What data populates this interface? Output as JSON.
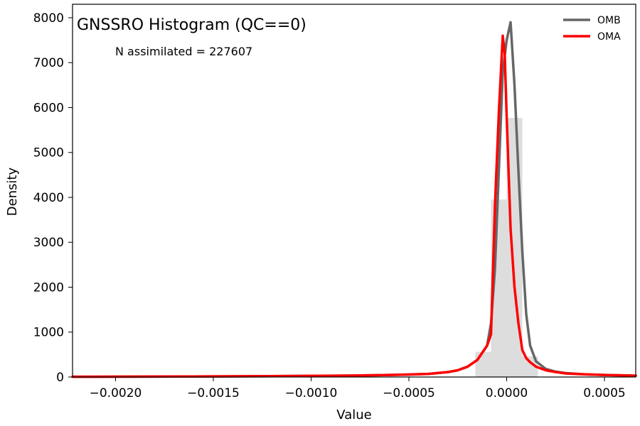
{
  "chart_data": {
    "type": "line",
    "title": "GNSSRO Histogram (QC==0)",
    "annotation": "N assimilated = 227607",
    "xlabel": "Value",
    "ylabel": "Density",
    "xlim": [
      -0.00222,
      0.00066
    ],
    "ylim": [
      0,
      8300
    ],
    "xticks": [
      {
        "v": -0.002,
        "label": "−0.0020"
      },
      {
        "v": -0.0015,
        "label": "−0.0015"
      },
      {
        "v": -0.001,
        "label": "−0.0010"
      },
      {
        "v": -0.0005,
        "label": "−0.0005"
      },
      {
        "v": 0.0,
        "label": "0.0000"
      },
      {
        "v": 0.0005,
        "label": "0.0005"
      }
    ],
    "yticks": [
      {
        "v": 0,
        "label": "0"
      },
      {
        "v": 1000,
        "label": "1000"
      },
      {
        "v": 2000,
        "label": "2000"
      },
      {
        "v": 3000,
        "label": "3000"
      },
      {
        "v": 4000,
        "label": "4000"
      },
      {
        "v": 5000,
        "label": "5000"
      },
      {
        "v": 6000,
        "label": "6000"
      },
      {
        "v": 7000,
        "label": "7000"
      },
      {
        "v": 8000,
        "label": "8000"
      }
    ],
    "legend_position": "top-right",
    "histogram": {
      "color": "#dddddd",
      "bins": [
        {
          "x0": -0.00016,
          "x1": -8e-05,
          "y": 560
        },
        {
          "x0": -8e-05,
          "x1": 0.0,
          "y": 3950
        },
        {
          "x0": 0.0,
          "x1": 8e-05,
          "y": 5770
        },
        {
          "x0": 8e-05,
          "x1": 0.00016,
          "y": 460
        }
      ]
    },
    "series": [
      {
        "name": "OMB",
        "color": "#666666",
        "x": [
          -0.00222,
          -0.002,
          -0.0018,
          -0.0016,
          -0.0014,
          -0.0012,
          -0.001,
          -0.0008,
          -0.0006,
          -0.0005,
          -0.0004,
          -0.0003,
          -0.00025,
          -0.0002,
          -0.00015,
          -0.0001,
          -8e-05,
          -6e-05,
          -4e-05,
          -2e-05,
          0.0,
          2e-05,
          4e-05,
          6e-05,
          8e-05,
          0.0001,
          0.00012,
          0.00015,
          0.0002,
          0.00025,
          0.0003,
          0.0004,
          0.0005,
          0.00066
        ],
        "y": [
          5,
          8,
          10,
          12,
          15,
          20,
          25,
          32,
          45,
          55,
          70,
          110,
          150,
          230,
          380,
          700,
          1200,
          2400,
          4600,
          6800,
          7500,
          7900,
          6500,
          4600,
          2800,
          1400,
          700,
          350,
          180,
          120,
          90,
          60,
          45,
          30
        ]
      },
      {
        "name": "OMA",
        "color": "#ff0000",
        "x": [
          -0.00222,
          -0.002,
          -0.0018,
          -0.0016,
          -0.0014,
          -0.0012,
          -0.001,
          -0.0008,
          -0.0006,
          -0.0005,
          -0.0004,
          -0.0003,
          -0.00025,
          -0.0002,
          -0.00015,
          -0.0001,
          -8e-05,
          -6e-05,
          -4e-05,
          -2e-05,
          -1e-05,
          0.0,
          2e-05,
          4e-05,
          6e-05,
          8e-05,
          0.0001,
          0.00012,
          0.00015,
          0.0002,
          0.00025,
          0.0003,
          0.0004,
          0.0005,
          0.00066
        ],
        "y": [
          5,
          8,
          10,
          12,
          15,
          20,
          25,
          32,
          45,
          55,
          70,
          110,
          150,
          230,
          380,
          700,
          950,
          3800,
          5900,
          7600,
          7200,
          5800,
          3300,
          2000,
          1200,
          600,
          420,
          330,
          230,
          150,
          110,
          80,
          60,
          45,
          30
        ]
      }
    ]
  }
}
